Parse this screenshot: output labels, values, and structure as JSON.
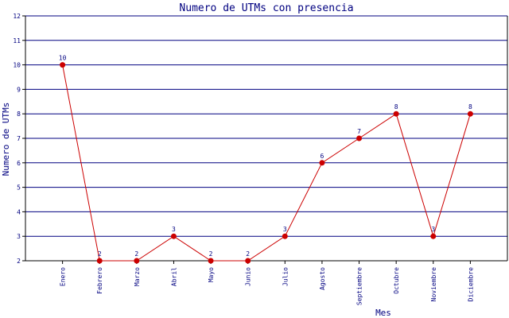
{
  "chart_data": {
    "type": "line",
    "title": "Numero de UTMs con presencia",
    "xlabel": "Mes",
    "ylabel": "Numero de UTMs",
    "categories": [
      "Enero",
      "Febrero",
      "Marzo",
      "Abril",
      "Mayo",
      "Junio",
      "Julio",
      "Agosto",
      "Septiembre",
      "Octubre",
      "Noviembre",
      "Diciembre"
    ],
    "values": [
      10,
      2,
      2,
      3,
      2,
      2,
      3,
      6,
      7,
      8,
      3,
      8
    ],
    "ylim": [
      2,
      12
    ],
    "yticks": [
      "2",
      "3",
      "4",
      "5",
      "6",
      "7",
      "8",
      "9",
      "10",
      "11",
      "12"
    ],
    "grid": true,
    "colors": {
      "line": "#cc0000",
      "marker": "#cc0000",
      "grid": "#000080",
      "text": "#000080",
      "axis": "#000000"
    }
  }
}
